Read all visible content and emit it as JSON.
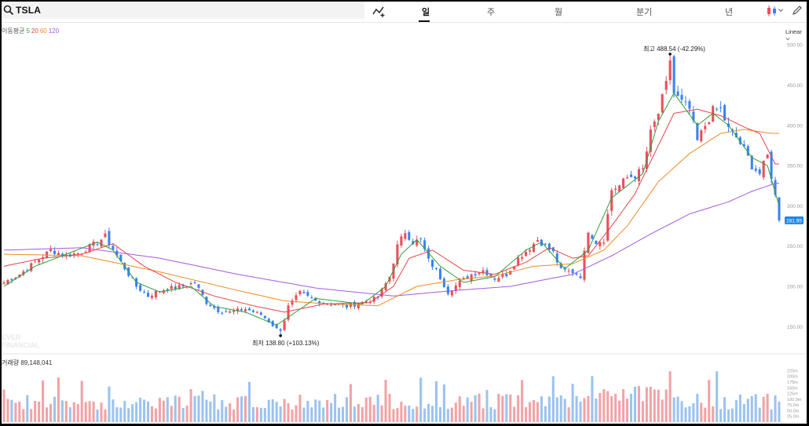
{
  "header": {
    "ticker": "TSLA",
    "tabs": [
      {
        "label": "일",
        "active": true
      },
      {
        "label": "주",
        "active": false
      },
      {
        "label": "월",
        "active": false
      },
      {
        "label": "분기",
        "active": false
      },
      {
        "label": "년",
        "active": false
      }
    ],
    "scale_label": "Linear"
  },
  "legend": {
    "prefix": "이동평균",
    "periods": [
      {
        "label": "5",
        "color": "#2e9e3a"
      },
      {
        "label": "20",
        "color": "#e64545"
      },
      {
        "label": "60",
        "color": "#f08a24"
      },
      {
        "label": "120",
        "color": "#a25be0"
      }
    ]
  },
  "watermark": {
    "line1": "EVER",
    "line2": "FINANCIAL"
  },
  "volume": {
    "label": "거래량",
    "value": "89,148,041"
  },
  "colors": {
    "up": "#e8505b",
    "down": "#3b82f6",
    "vol_up": "#f2a3a6",
    "vol_down": "#9cc3f0",
    "ma5": "#2e9e3a",
    "ma20": "#e64545",
    "ma60": "#f08a24",
    "ma120": "#a25be0",
    "current_badge": "#1e88e5"
  },
  "chart_data": {
    "type": "candlestick",
    "title": "TSLA",
    "y_ticks": [
      "500.00",
      "450.00",
      "400.00",
      "350.00",
      "300.00",
      "250.00",
      "200.00",
      "150.00"
    ],
    "y_tick_values": [
      500,
      450,
      400,
      350,
      300,
      250,
      200,
      150
    ],
    "ylim": [
      125,
      505
    ],
    "volume_ticks": [
      "225m",
      "200m",
      "175m",
      "150m",
      "125m",
      "100.0m",
      "75.0m",
      "50.0m",
      "25.0m"
    ],
    "volume_tick_values": [
      225,
      200,
      175,
      150,
      125,
      100,
      75,
      50,
      25
    ],
    "volume_ylim": [
      0,
      240
    ],
    "current_price": "281.95",
    "current_value": 281.95,
    "high": {
      "label": "최고",
      "value": "488.54",
      "pct": "(-42.29%)",
      "price": 488.54,
      "index": 171
    },
    "low": {
      "label": "최저",
      "value": "138.80",
      "pct": "(+103.13%)",
      "price": 138.8,
      "index": 71
    },
    "close_anchors": [
      [
        0,
        205
      ],
      [
        4,
        215
      ],
      [
        8,
        230
      ],
      [
        12,
        245
      ],
      [
        16,
        238
      ],
      [
        20,
        243
      ],
      [
        24,
        255
      ],
      [
        26,
        262
      ],
      [
        29,
        238
      ],
      [
        32,
        215
      ],
      [
        34,
        200
      ],
      [
        37,
        188
      ],
      [
        40,
        195
      ],
      [
        43,
        198
      ],
      [
        46,
        200
      ],
      [
        49,
        205
      ],
      [
        52,
        180
      ],
      [
        55,
        170
      ],
      [
        58,
        168
      ],
      [
        62,
        172
      ],
      [
        66,
        165
      ],
      [
        69,
        152
      ],
      [
        71,
        142
      ],
      [
        73,
        175
      ],
      [
        76,
        192
      ],
      [
        80,
        182
      ],
      [
        84,
        178
      ],
      [
        88,
        175
      ],
      [
        92,
        180
      ],
      [
        96,
        186
      ],
      [
        99,
        212
      ],
      [
        101,
        250
      ],
      [
        103,
        268
      ],
      [
        105,
        255
      ],
      [
        107,
        258
      ],
      [
        109,
        232
      ],
      [
        111,
        220
      ],
      [
        114,
        193
      ],
      [
        117,
        205
      ],
      [
        120,
        215
      ],
      [
        123,
        220
      ],
      [
        126,
        210
      ],
      [
        129,
        215
      ],
      [
        132,
        235
      ],
      [
        135,
        248
      ],
      [
        137,
        258
      ],
      [
        139,
        250
      ],
      [
        141,
        242
      ],
      [
        143,
        220
      ],
      [
        146,
        218
      ],
      [
        148,
        213
      ],
      [
        150,
        270
      ],
      [
        152,
        255
      ],
      [
        154,
        258
      ],
      [
        156,
        320
      ],
      [
        158,
        325
      ],
      [
        160,
        335
      ],
      [
        162,
        338
      ],
      [
        164,
        345
      ],
      [
        166,
        390
      ],
      [
        168,
        415
      ],
      [
        170,
        450
      ],
      [
        172,
        440
      ],
      [
        174,
        428
      ],
      [
        176,
        420
      ],
      [
        178,
        380
      ],
      [
        180,
        400
      ],
      [
        182,
        418
      ],
      [
        184,
        420
      ],
      [
        186,
        395
      ],
      [
        188,
        385
      ],
      [
        190,
        370
      ],
      [
        192,
        350
      ],
      [
        194,
        340
      ],
      [
        196,
        362
      ],
      [
        198,
        312
      ],
      [
        199,
        282
      ]
    ],
    "ma5_anchors": [
      [
        0,
        200
      ],
      [
        8,
        225
      ],
      [
        16,
        240
      ],
      [
        24,
        255
      ],
      [
        28,
        245
      ],
      [
        34,
        205
      ],
      [
        40,
        193
      ],
      [
        48,
        200
      ],
      [
        54,
        175
      ],
      [
        62,
        168
      ],
      [
        70,
        152
      ],
      [
        74,
        165
      ],
      [
        80,
        185
      ],
      [
        92,
        178
      ],
      [
        98,
        200
      ],
      [
        102,
        240
      ],
      [
        106,
        258
      ],
      [
        112,
        225
      ],
      [
        118,
        205
      ],
      [
        126,
        212
      ],
      [
        134,
        245
      ],
      [
        138,
        255
      ],
      [
        144,
        222
      ],
      [
        150,
        245
      ],
      [
        156,
        310
      ],
      [
        164,
        340
      ],
      [
        168,
        405
      ],
      [
        172,
        440
      ],
      [
        178,
        400
      ],
      [
        182,
        415
      ],
      [
        186,
        400
      ],
      [
        192,
        360
      ],
      [
        196,
        350
      ],
      [
        199,
        300
      ]
    ],
    "ma20_anchors": [
      [
        0,
        225
      ],
      [
        10,
        235
      ],
      [
        20,
        240
      ],
      [
        28,
        253
      ],
      [
        36,
        225
      ],
      [
        44,
        205
      ],
      [
        54,
        188
      ],
      [
        64,
        176
      ],
      [
        72,
        168
      ],
      [
        82,
        178
      ],
      [
        94,
        180
      ],
      [
        100,
        200
      ],
      [
        104,
        235
      ],
      [
        110,
        245
      ],
      [
        118,
        220
      ],
      [
        126,
        215
      ],
      [
        134,
        230
      ],
      [
        140,
        248
      ],
      [
        146,
        235
      ],
      [
        150,
        238
      ],
      [
        156,
        275
      ],
      [
        162,
        315
      ],
      [
        168,
        375
      ],
      [
        172,
        415
      ],
      [
        178,
        420
      ],
      [
        184,
        412
      ],
      [
        190,
        398
      ],
      [
        194,
        390
      ],
      [
        198,
        352
      ]
    ],
    "ma60_anchors": [
      [
        0,
        240
      ],
      [
        20,
        238
      ],
      [
        40,
        218
      ],
      [
        60,
        195
      ],
      [
        72,
        182
      ],
      [
        84,
        178
      ],
      [
        96,
        176
      ],
      [
        106,
        200
      ],
      [
        116,
        208
      ],
      [
        126,
        213
      ],
      [
        136,
        225
      ],
      [
        146,
        228
      ],
      [
        154,
        245
      ],
      [
        160,
        275
      ],
      [
        168,
        330
      ],
      [
        176,
        365
      ],
      [
        184,
        390
      ],
      [
        190,
        395
      ],
      [
        197,
        390
      ]
    ],
    "ma120_anchors": [
      [
        0,
        245
      ],
      [
        20,
        248
      ],
      [
        40,
        235
      ],
      [
        60,
        215
      ],
      [
        80,
        198
      ],
      [
        100,
        188
      ],
      [
        116,
        195
      ],
      [
        130,
        200
      ],
      [
        146,
        215
      ],
      [
        156,
        238
      ],
      [
        166,
        265
      ],
      [
        176,
        290
      ],
      [
        186,
        305
      ],
      [
        192,
        318
      ],
      [
        198,
        328
      ]
    ]
  }
}
